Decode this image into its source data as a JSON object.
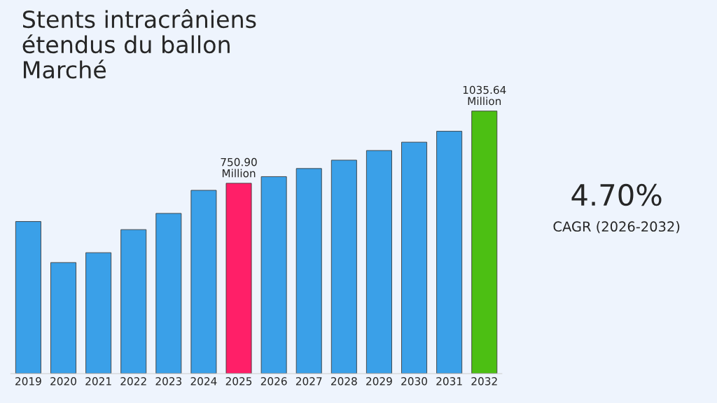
{
  "chart_data": {
    "type": "bar",
    "title": "Stents intracrâniens\nétendus du ballon\nMarché",
    "categories": [
      "2019",
      "2020",
      "2021",
      "2022",
      "2023",
      "2024",
      "2025",
      "2026",
      "2027",
      "2028",
      "2029",
      "2030",
      "2031",
      "2032"
    ],
    "values": [
      600,
      438,
      477,
      568,
      632,
      723,
      750.9,
      777,
      809,
      842,
      880,
      913,
      956,
      1035.64
    ],
    "colors": [
      "#3aa0e8",
      "#3aa0e8",
      "#3aa0e8",
      "#3aa0e8",
      "#3aa0e8",
      "#3aa0e8",
      "#ff1f68",
      "#3aa0e8",
      "#3aa0e8",
      "#3aa0e8",
      "#3aa0e8",
      "#3aa0e8",
      "#3aa0e8",
      "#4cbf13"
    ],
    "value_labels": [
      null,
      null,
      null,
      null,
      null,
      null,
      "750.90\nMillion",
      null,
      null,
      null,
      null,
      null,
      null,
      "1035.64\nMillion"
    ],
    "tick_labels": "x",
    "grid": false,
    "legend": false,
    "annotations": [
      "4.70%",
      "CAGR (2026-2032)"
    ]
  }
}
